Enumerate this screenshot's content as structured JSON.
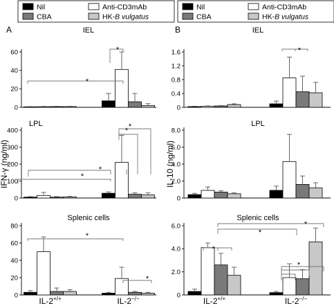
{
  "legend_left": [
    {
      "label": "Nil",
      "color": "#000000"
    },
    {
      "label": "Anti-CD3mAb",
      "color": "#ffffff"
    },
    {
      "label": "CBA",
      "color": "#7a7a7a"
    },
    {
      "label": "HK-B vulgatus",
      "color": "#c8c8c8"
    }
  ],
  "legend_right": [
    {
      "label": "Nil",
      "color": "#000000"
    },
    {
      "label": "Anti-CD3mAb",
      "color": "#ffffff"
    },
    {
      "label": "CBA",
      "color": "#7a7a7a"
    },
    {
      "label": "HK-B vulgatus",
      "color": "#c8c8c8"
    }
  ],
  "chart_data": [
    {
      "id": "A1",
      "type": "bar",
      "title": "IEL",
      "panel_letter": "A",
      "ylim": [
        0,
        60
      ],
      "yticks": [
        "0",
        "20",
        "40",
        "60"
      ],
      "groups": [
        "IL-2+/+",
        "IL-2−/−"
      ],
      "series": [
        {
          "name": "Nil",
          "values": [
            0.5,
            7
          ],
          "errors": [
            0.3,
            8
          ]
        },
        {
          "name": "Anti-CD3mAb",
          "values": [
            0.7,
            41
          ],
          "errors": [
            0.3,
            19
          ]
        },
        {
          "name": "CBA",
          "values": [
            0.8,
            6
          ],
          "errors": [
            0.3,
            9
          ]
        },
        {
          "name": "HK-B vulgatus",
          "values": [
            0.8,
            2
          ],
          "errors": [
            0.3,
            2
          ]
        }
      ],
      "significance": "*"
    },
    {
      "id": "B1",
      "type": "bar",
      "title": "IEL",
      "panel_letter": "B",
      "ylim": [
        0,
        1.6
      ],
      "yticks": [
        "0",
        "0.4",
        "0.8",
        "1.2",
        "1.6"
      ],
      "groups": [
        "IL-2+/+",
        "IL-2−/−"
      ],
      "series": [
        {
          "name": "Nil",
          "values": [
            0.02,
            0.1
          ],
          "errors": [
            0.01,
            0.08
          ]
        },
        {
          "name": "Anti-CD3mAb",
          "values": [
            0.03,
            0.85
          ],
          "errors": [
            0.01,
            0.6
          ]
        },
        {
          "name": "CBA",
          "values": [
            0.04,
            0.45
          ],
          "errors": [
            0.01,
            0.45
          ]
        },
        {
          "name": "HK-B vulgatus",
          "values": [
            0.08,
            0.42
          ],
          "errors": [
            0.02,
            0.3
          ]
        }
      ],
      "significance": "*"
    },
    {
      "id": "A2",
      "type": "bar",
      "title": "LPL",
      "ylabel": "IFN-γ (ng/ml)",
      "ylim": [
        0,
        400
      ],
      "yticks": [
        "0",
        "100",
        "200",
        "300",
        "400"
      ],
      "groups": [
        "IL-2+/+",
        "IL-2−/−"
      ],
      "series": [
        {
          "name": "Nil",
          "values": [
            5,
            28
          ],
          "errors": [
            3,
            8
          ]
        },
        {
          "name": "Anti-CD3mAb",
          "values": [
            15,
            210
          ],
          "errors": [
            18,
            160
          ]
        },
        {
          "name": "CBA",
          "values": [
            5,
            22
          ],
          "errors": [
            3,
            8
          ]
        },
        {
          "name": "HK-B vulgatus",
          "values": [
            6,
            18
          ],
          "errors": [
            3,
            12
          ]
        }
      ],
      "significance": "*"
    },
    {
      "id": "B2",
      "type": "bar",
      "title": "LPL",
      "ylabel": "IL-10 (ng/ml)",
      "ylim": [
        0,
        8
      ],
      "yticks": [
        "0",
        "2.0",
        "4.0",
        "6.0",
        "8.0"
      ],
      "groups": [
        "IL-2+/+",
        "IL-2−/−"
      ],
      "series": [
        {
          "name": "Nil",
          "values": [
            0.4,
            0.9
          ],
          "errors": [
            0.15,
            0.5
          ]
        },
        {
          "name": "Anti-CD3mAb",
          "values": [
            0.9,
            4.3
          ],
          "errors": [
            0.4,
            3.2
          ]
        },
        {
          "name": "CBA",
          "values": [
            0.7,
            1.6
          ],
          "errors": [
            0.15,
            1.0
          ]
        },
        {
          "name": "HK-B vulgatus",
          "values": [
            0.5,
            1.2
          ],
          "errors": [
            0.1,
            0.6
          ]
        }
      ]
    },
    {
      "id": "A3",
      "type": "bar",
      "title": "Splenic cells",
      "ylim": [
        0,
        80
      ],
      "yticks": [
        "0",
        "20",
        "40",
        "60",
        "80"
      ],
      "groups": [
        "IL-2+/+",
        "IL-2−/−"
      ],
      "series": [
        {
          "name": "Nil",
          "values": [
            3,
            2
          ],
          "errors": [
            2,
            1
          ]
        },
        {
          "name": "Anti-CD3mAb",
          "values": [
            50,
            19
          ],
          "errors": [
            17,
            13
          ]
        },
        {
          "name": "CBA",
          "values": [
            4,
            3
          ],
          "errors": [
            4,
            1
          ]
        },
        {
          "name": "HK-B vulgatus",
          "values": [
            4,
            2
          ],
          "errors": [
            2,
            1
          ]
        }
      ],
      "significance": "*"
    },
    {
      "id": "B3",
      "type": "bar",
      "title": "Splenic cells",
      "ylim": [
        0,
        6
      ],
      "yticks": [
        "0",
        "2.0",
        "4.0",
        "6.0"
      ],
      "groups": [
        "IL-2+/+",
        "IL-2−/−"
      ],
      "series": [
        {
          "name": "Nil",
          "values": [
            0.3,
            0.2
          ],
          "errors": [
            0.2,
            0.1
          ]
        },
        {
          "name": "Anti-CD3mAb",
          "values": [
            4.1,
            1.5
          ],
          "errors": [
            0.4,
            1.2
          ]
        },
        {
          "name": "CBA",
          "values": [
            2.6,
            1.4
          ],
          "errors": [
            1.0,
            0.8
          ]
        },
        {
          "name": "HK-B vulgatus",
          "values": [
            1.7,
            4.6
          ],
          "errors": [
            0.7,
            1.2
          ]
        }
      ],
      "significance": "*"
    }
  ],
  "x_labels": [
    {
      "base": "IL-2",
      "sup": "+/+"
    },
    {
      "base": "IL-2",
      "sup": "−/−"
    }
  ]
}
